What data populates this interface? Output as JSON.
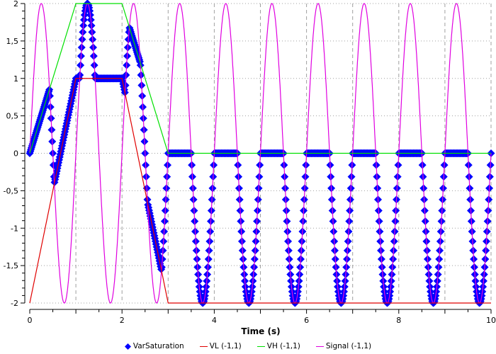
{
  "chart_data": {
    "type": "line",
    "title": "",
    "xlabel": "Time (s)",
    "ylabel": "",
    "xlim": [
      0,
      10
    ],
    "ylim": [
      -2,
      2
    ],
    "x_ticks": [
      "0",
      "2",
      "4",
      "6",
      "8",
      "10"
    ],
    "y_ticks": [
      "2",
      "1,5",
      "1",
      "0,5",
      "0",
      "-0,5",
      "-1",
      "-1,5",
      "-2"
    ],
    "grid": true,
    "legend_position": "bottom",
    "series": [
      {
        "name": "VarSaturation",
        "color": "#0000ff",
        "marker": "diamond",
        "description": "Signal clamped between VL and VH",
        "key_points": [
          [
            0,
            0
          ],
          [
            0.42,
            0.85
          ],
          [
            0.55,
            -0.4
          ],
          [
            1.0,
            1.0
          ],
          [
            1.25,
            2.0
          ],
          [
            1.5,
            1.0
          ],
          [
            2.0,
            1.0
          ],
          [
            2.2,
            1.67
          ],
          [
            2.9,
            -1.55
          ],
          [
            3.0,
            0
          ],
          [
            3.25,
            0
          ],
          [
            3.75,
            -2
          ],
          [
            4.25,
            0
          ],
          [
            4.75,
            -2
          ],
          [
            5.25,
            0
          ],
          [
            5.75,
            -2
          ],
          [
            6.25,
            0
          ],
          [
            6.75,
            -2
          ],
          [
            7.25,
            0
          ],
          [
            7.75,
            -2
          ],
          [
            8.25,
            0
          ],
          [
            8.75,
            -2
          ],
          [
            9.25,
            0
          ],
          [
            9.75,
            -2
          ],
          [
            10,
            0
          ]
        ]
      },
      {
        "name": "VL (-1,1)",
        "color": "#e00000",
        "x": [
          0,
          1,
          2,
          3,
          10
        ],
        "values": [
          -2,
          1,
          1,
          -2,
          -2
        ]
      },
      {
        "name": "VH (-1,1)",
        "color": "#00e000",
        "x": [
          0,
          1,
          2,
          3,
          10
        ],
        "values": [
          0,
          2,
          2,
          0,
          0
        ]
      },
      {
        "name": "Signal (-1,1)",
        "color": "#e000e0",
        "function": "2*sin(2*pi*t)",
        "amplitude": 2,
        "period": 1,
        "x_range": [
          0,
          10
        ]
      }
    ]
  },
  "legend": {
    "items": [
      {
        "label": "VarSaturation",
        "color": "#0000ff",
        "kind": "marker"
      },
      {
        "label": "VL (-1,1)",
        "color": "#e00000",
        "kind": "line"
      },
      {
        "label": "VH (-1,1)",
        "color": "#00e000",
        "kind": "line"
      },
      {
        "label": "Signal (-1,1)",
        "color": "#e000e0",
        "kind": "line"
      }
    ]
  }
}
